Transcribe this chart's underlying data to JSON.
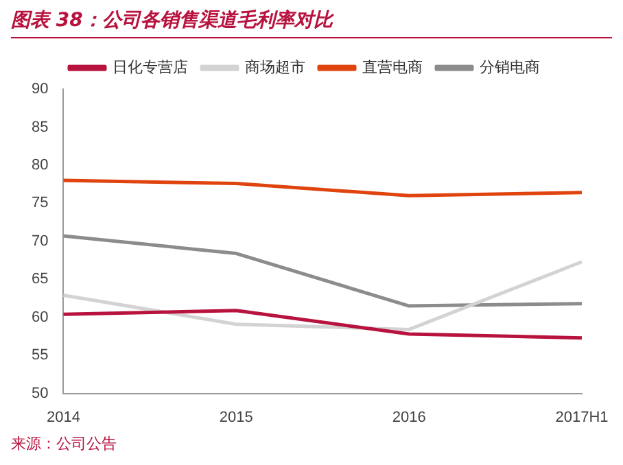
{
  "chart_data": {
    "type": "line",
    "title": "图表 38：公司各销售渠道毛利率对比",
    "categories": [
      "2014",
      "2015",
      "2016",
      "2017H1"
    ],
    "series": [
      {
        "name": "日化专营店",
        "color": "#b8123e",
        "values": [
          60.4,
          60.9,
          57.8,
          57.3
        ]
      },
      {
        "name": "商场超市",
        "color": "#d3d3d3",
        "values": [
          62.9,
          59.1,
          58.4,
          67.3
        ]
      },
      {
        "name": "直营电商",
        "color": "#e0440e",
        "values": [
          78,
          77.6,
          76,
          76.4
        ]
      },
      {
        "name": "分销电商",
        "color": "#8c8c8c",
        "values": [
          70.7,
          68.4,
          61.5,
          61.8
        ]
      }
    ],
    "ylim": [
      50,
      90
    ],
    "yticks": [
      50,
      55,
      60,
      65,
      70,
      75,
      80,
      85,
      90
    ],
    "grid": false,
    "legend": "top",
    "marker": "none",
    "annotations": [
      "来源：公司公告"
    ]
  }
}
